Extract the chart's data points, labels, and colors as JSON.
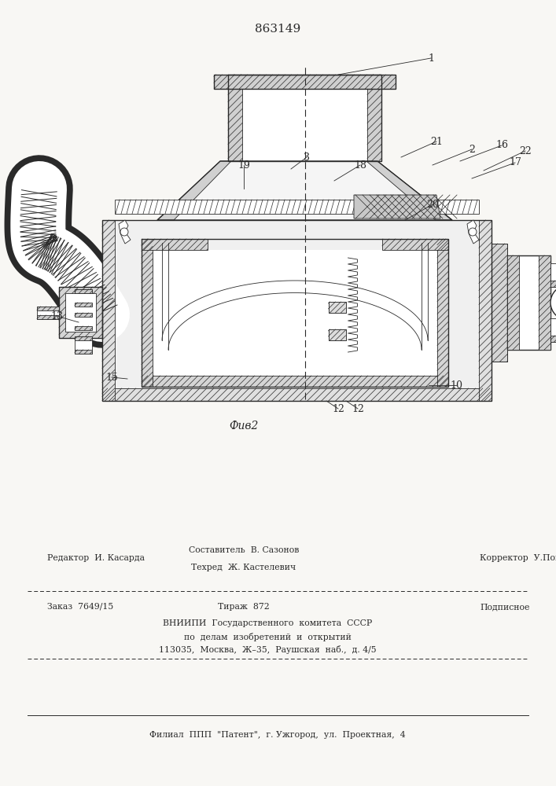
{
  "patent_number": "863149",
  "fig_caption": "Фив2",
  "bg_color": "#f8f7f4",
  "line_color": "#2a2a2a",
  "footer": {
    "editor_label": "Редактор  И. Касарда",
    "composer_label": "Составитель  В. Сазонов",
    "techred_label": "Техред  Ж. Кастелевич",
    "corrector_label": "Корректор  У.Пономаренко",
    "order_label": "Заказ  7649/15",
    "tirazh_label": "Тираж  872",
    "podpisnoe_label": "Подписное",
    "vniipи_line1": "ВНИИПИ  Государственного  комитета  СССР",
    "vniipи_line2": "по  делам  изобретений  и  открытий",
    "vniipи_line3": "113035,  Москва,  Ж–35,  Раушская  наб.,  д. 4/5",
    "filial_line": "Филиал  ППП  \"Патент\",  г. Ужгород,  ул.  Проектная,  4"
  }
}
